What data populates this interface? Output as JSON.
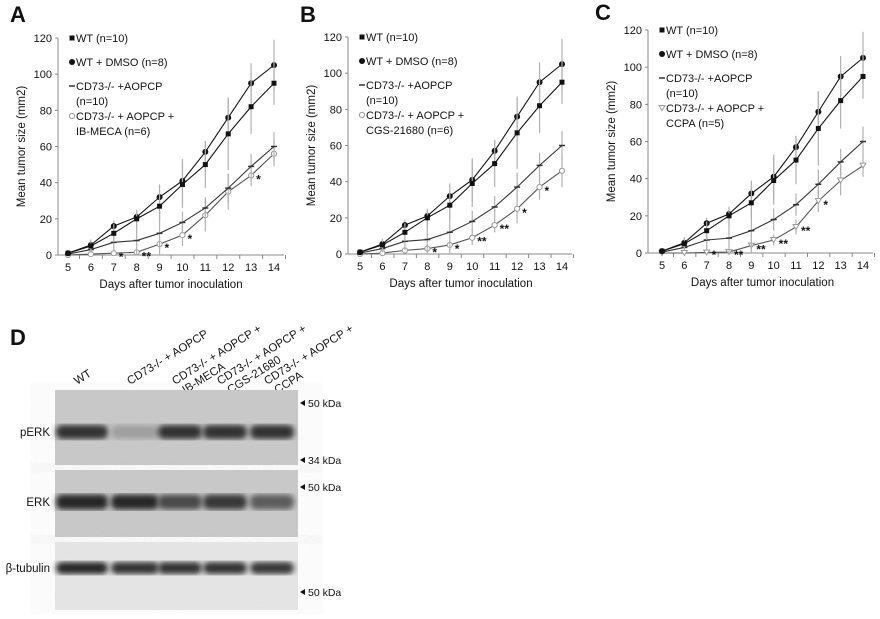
{
  "chart_data": [
    {
      "panel": "A",
      "type": "line",
      "xlabel": "Days after tumor inoculation",
      "ylabel": "Mean tumor size (mm2)",
      "x": [
        5,
        6,
        7,
        8,
        9,
        10,
        11,
        12,
        13,
        14
      ],
      "xlim": [
        5,
        14
      ],
      "ylim": [
        0,
        120
      ],
      "yticks": [
        0,
        20,
        40,
        60,
        80,
        100,
        120
      ],
      "grid": false,
      "legend": "top-left",
      "series": [
        {
          "name": "WT (n=10)",
          "marker": "square",
          "color": "#111111",
          "values": [
            1,
            5,
            12,
            20,
            27,
            39,
            50,
            67,
            82,
            95
          ],
          "error": [
            1,
            3,
            5,
            5,
            8,
            13,
            13,
            20,
            15,
            12
          ]
        },
        {
          "name": "WT + DMSO (n=8)",
          "marker": "circle",
          "color": "#111111",
          "values": [
            1,
            5.5,
            16,
            21,
            32,
            41,
            57,
            76,
            95,
            105
          ],
          "error": [
            1,
            3,
            3,
            3,
            7,
            12,
            6,
            11,
            11,
            14
          ]
        },
        {
          "name": "CD73-/- +AOPCP (n=10)",
          "marker": "dash",
          "color": "#333333",
          "values": [
            0.5,
            3,
            7,
            8,
            12,
            18,
            26,
            37,
            49,
            60
          ],
          "error": [
            0.5,
            2,
            5,
            13,
            12,
            6,
            6,
            8,
            7,
            8
          ]
        },
        {
          "name": "CD73-/- + AOPCP + IB-MECA (n=6)",
          "marker": "open-circle",
          "color": "#999999",
          "values": [
            0,
            0.5,
            1,
            1.5,
            6,
            11,
            22,
            35,
            44,
            56
          ],
          "error": [
            0,
            0.5,
            1,
            1,
            3,
            6,
            9,
            10,
            6,
            7
          ]
        }
      ],
      "annotations": [
        {
          "x": 7,
          "text": "*"
        },
        {
          "x": 8,
          "text": "**"
        },
        {
          "x": 9,
          "text": "*"
        },
        {
          "x": 10,
          "text": "*"
        },
        {
          "x": 13,
          "text": "*"
        }
      ]
    },
    {
      "panel": "B",
      "type": "line",
      "xlabel": "Days after tumor inoculation",
      "ylabel": "Mean tumor size (mm2)",
      "x": [
        5,
        6,
        7,
        8,
        9,
        10,
        11,
        12,
        13,
        14
      ],
      "xlim": [
        5,
        14
      ],
      "ylim": [
        0,
        120
      ],
      "yticks": [
        0,
        20,
        40,
        60,
        80,
        100,
        120
      ],
      "grid": false,
      "legend": "top-left",
      "series": [
        {
          "name": "WT (n=10)",
          "marker": "square",
          "color": "#111111",
          "values": [
            1,
            5,
            12,
            20,
            27,
            39,
            50,
            67,
            82,
            95
          ],
          "error": [
            1,
            3,
            5,
            5,
            8,
            13,
            13,
            20,
            15,
            12
          ]
        },
        {
          "name": "WT + DMSO (n=8)",
          "marker": "circle",
          "color": "#111111",
          "values": [
            1,
            5.5,
            16,
            21,
            32,
            41,
            57,
            76,
            95,
            105
          ],
          "error": [
            1,
            3,
            3,
            3,
            7,
            12,
            6,
            11,
            11,
            14
          ]
        },
        {
          "name": "CD73-/- +AOPCP (n=10)",
          "marker": "dash",
          "color": "#333333",
          "values": [
            0.5,
            3,
            7,
            8,
            12,
            18,
            26,
            37,
            49,
            60
          ],
          "error": [
            0.5,
            2,
            5,
            13,
            12,
            6,
            6,
            8,
            7,
            8
          ]
        },
        {
          "name": "CD73-/- + AOPCP + CGS-21680 (n=6)",
          "marker": "open-circle",
          "color": "#999999",
          "values": [
            0,
            0.5,
            2,
            3,
            5,
            9,
            16,
            25,
            37,
            46
          ],
          "error": [
            0,
            0.5,
            1,
            2,
            3,
            4,
            4,
            8,
            7,
            9
          ]
        }
      ],
      "annotations": [
        {
          "x": 8,
          "text": "*"
        },
        {
          "x": 9,
          "text": "*"
        },
        {
          "x": 10,
          "text": "**"
        },
        {
          "x": 11,
          "text": "**"
        },
        {
          "x": 12,
          "text": "*"
        },
        {
          "x": 13,
          "text": "*"
        }
      ]
    },
    {
      "panel": "C",
      "type": "line",
      "xlabel": "Days after tumor inoculation",
      "ylabel": "Mean tumor size (mm2)",
      "x": [
        5,
        6,
        7,
        8,
        9,
        10,
        11,
        12,
        13,
        14
      ],
      "xlim": [
        5,
        14
      ],
      "ylim": [
        0,
        120
      ],
      "yticks": [
        0,
        20,
        40,
        60,
        80,
        100,
        120
      ],
      "grid": false,
      "legend": "top-left",
      "series": [
        {
          "name": "WT (n=10)",
          "marker": "square",
          "color": "#111111",
          "values": [
            1,
            5,
            12,
            20,
            27,
            39,
            50,
            67,
            82,
            95
          ],
          "error": [
            1,
            3,
            5,
            5,
            8,
            13,
            13,
            20,
            15,
            12
          ]
        },
        {
          "name": "WT + DMSO (n=8)",
          "marker": "circle",
          "color": "#111111",
          "values": [
            1,
            5.5,
            16,
            21,
            32,
            41,
            57,
            76,
            95,
            105
          ],
          "error": [
            1,
            3,
            3,
            3,
            7,
            12,
            6,
            11,
            11,
            14
          ]
        },
        {
          "name": "CD73-/- +AOPCP (n=10)",
          "marker": "dash",
          "color": "#333333",
          "values": [
            0.5,
            3,
            7,
            8,
            12,
            18,
            26,
            37,
            49,
            60
          ],
          "error": [
            0.5,
            2,
            5,
            13,
            12,
            6,
            6,
            8,
            7,
            8
          ]
        },
        {
          "name": "CD73-/- + AOPCP + CCPA (n=5)",
          "marker": "open-triangle",
          "color": "#999999",
          "values": [
            0,
            0,
            0.3,
            0.5,
            4,
            7,
            14,
            28,
            39,
            47
          ],
          "error": [
            0,
            0,
            0.5,
            0.5,
            2,
            3,
            4,
            6,
            8,
            6
          ]
        }
      ],
      "annotations": [
        {
          "x": 7,
          "text": "*"
        },
        {
          "x": 8,
          "text": "**"
        },
        {
          "x": 9,
          "text": "**"
        },
        {
          "x": 10,
          "text": "**"
        },
        {
          "x": 11,
          "text": "**"
        },
        {
          "x": 12,
          "text": "*"
        }
      ]
    }
  ],
  "legend_lines": {
    "A": [
      "WT (n=10)",
      "WT + DMSO (n=8)",
      "CD73-/- +AOPCP",
      "(n=10)",
      "CD73-/- + AOPCP +",
      "IB-MECA (n=6)"
    ],
    "B": [
      "WT (n=10)",
      "WT + DMSO (n=8)",
      "CD73-/- +AOPCP",
      "(n=10)",
      "CD73-/- + AOPCP +",
      "CGS-21680 (n=6)"
    ],
    "C": [
      "WT (n=10)",
      "WT + DMSO (n=8)",
      "CD73-/- +AOPCP",
      "(n=10)",
      "CD73-/- + AOPCP +",
      "CCPA (n=5)"
    ]
  },
  "blot": {
    "panel": "D",
    "lanes": [
      {
        "lines": [
          "WT"
        ]
      },
      {
        "lines": [
          "CD73-/- + AOPCP"
        ]
      },
      {
        "lines": [
          "CD73-/- + AOPCP +",
          "IB-MECA"
        ]
      },
      {
        "lines": [
          "CD73-/- + AOPCP +",
          "CGS-21680"
        ]
      },
      {
        "lines": [
          "CD73-/- + AOPCP +",
          "CCPA"
        ]
      }
    ],
    "rows": [
      {
        "label": "pERK",
        "intensity": [
          0.95,
          0.3,
          0.95,
          0.95,
          0.95
        ],
        "markers": [
          "50 kDa",
          "34 kDa"
        ]
      },
      {
        "label": "ERK",
        "intensity": [
          1,
          1,
          0.8,
          0.9,
          0.7
        ],
        "markers": [
          "50 kDa"
        ]
      },
      {
        "label": "β-tubulin",
        "intensity": [
          1,
          0.95,
          0.95,
          0.95,
          0.9
        ],
        "markers": [
          "50 kDa"
        ]
      }
    ]
  }
}
